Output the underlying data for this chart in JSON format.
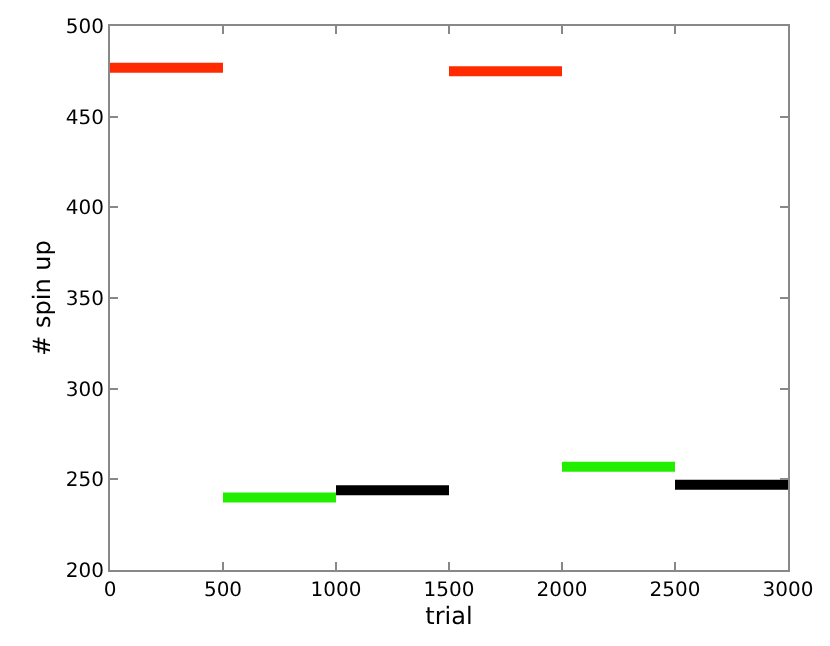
{
  "chart_data": {
    "type": "line",
    "xlabel": "trial",
    "ylabel": "# spin up",
    "xlim": [
      0,
      3000
    ],
    "xticks": [
      0,
      500,
      1000,
      1500,
      2000,
      2500,
      3000
    ],
    "ylim": [
      200,
      500
    ],
    "yticks": [
      200,
      250,
      300,
      350,
      400,
      450,
      500
    ],
    "line_style": "solid",
    "series": [
      {
        "color": "#ff2a00",
        "x": [
          0,
          500
        ],
        "values": [
          477,
          477
        ]
      },
      {
        "color": "#22ee00",
        "x": [
          500,
          1000
        ],
        "values": [
          240,
          240
        ]
      },
      {
        "color": "#000000",
        "x": [
          1000,
          1500
        ],
        "values": [
          244,
          244
        ]
      },
      {
        "color": "#ff2a00",
        "x": [
          1500,
          2000
        ],
        "values": [
          475,
          475
        ]
      },
      {
        "color": "#22ee00",
        "x": [
          2000,
          2500
        ],
        "values": [
          257,
          257
        ]
      },
      {
        "color": "#000000",
        "x": [
          2500,
          3000
        ],
        "values": [
          247,
          247
        ]
      }
    ]
  }
}
